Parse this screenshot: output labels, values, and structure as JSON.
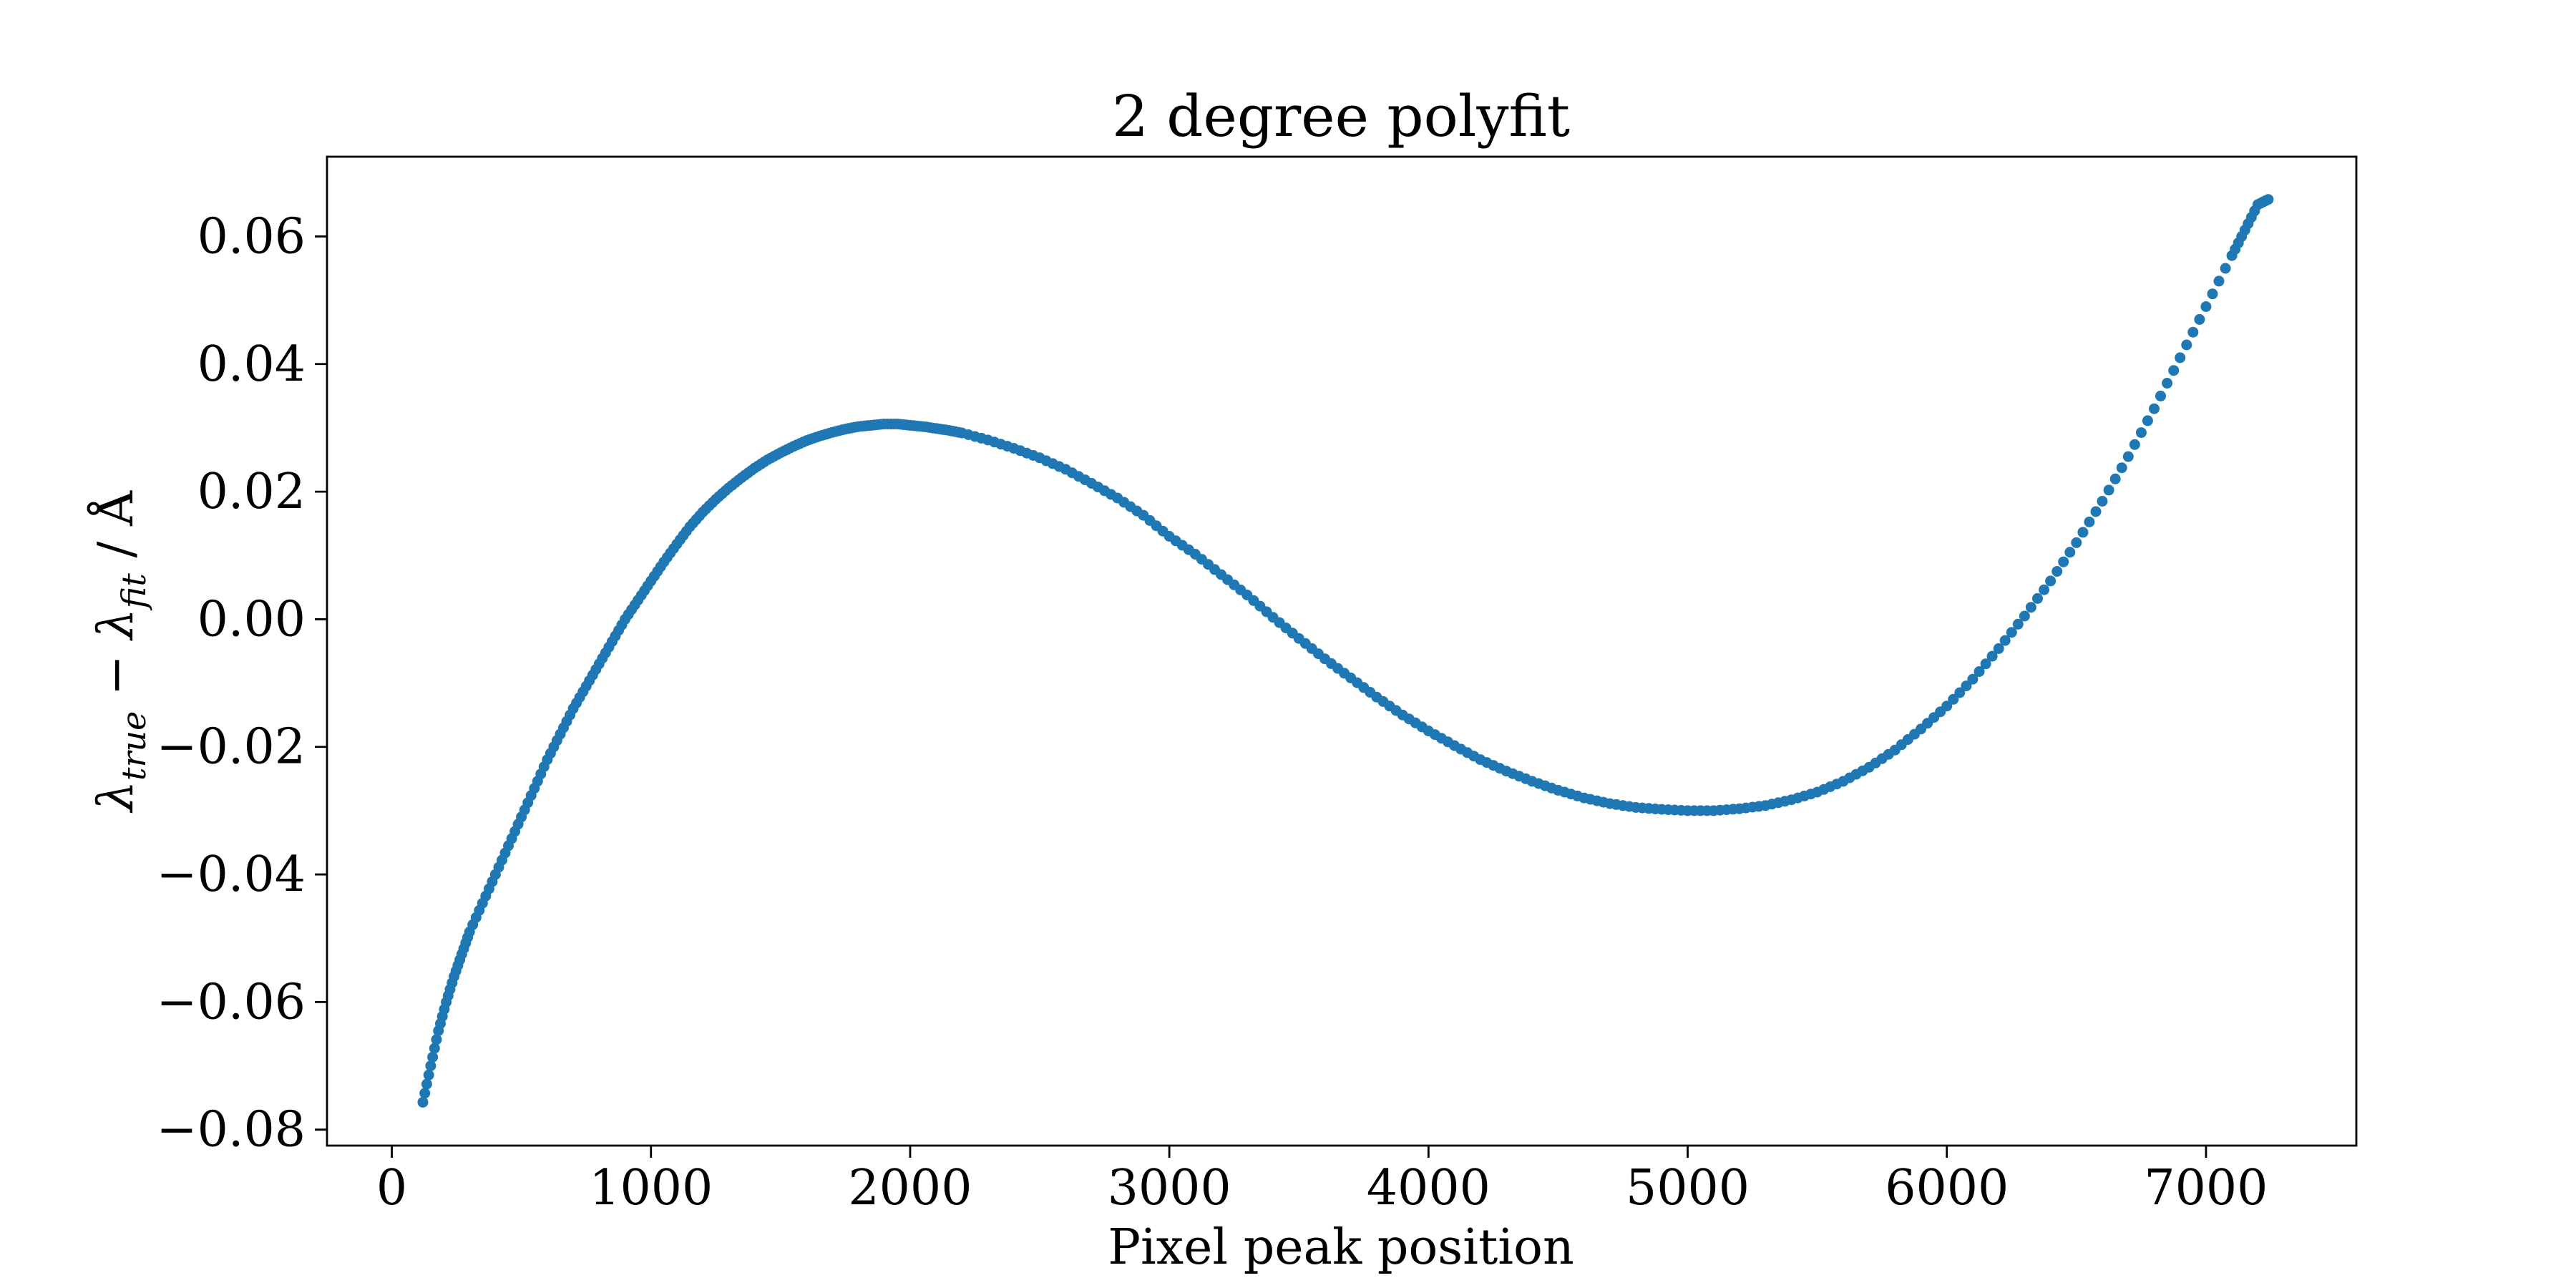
{
  "chart_data": {
    "type": "scatter",
    "title": "2 degree polyfit",
    "xlabel": "Pixel peak position",
    "ylabel": {
      "lambda": "λ",
      "sub_true": "true",
      "minus": " − ",
      "sub_fit": "fit",
      "unit": " / Å"
    },
    "xlim": [
      -250,
      7580
    ],
    "ylim": [
      -0.0825,
      0.0725
    ],
    "xticks": [
      0,
      1000,
      2000,
      3000,
      4000,
      5000,
      6000,
      7000
    ],
    "xtick_labels": [
      "0",
      "1000",
      "2000",
      "3000",
      "4000",
      "5000",
      "6000",
      "7000"
    ],
    "yticks": [
      -0.08,
      -0.06,
      -0.04,
      -0.02,
      0.0,
      0.02,
      0.04,
      0.06
    ],
    "ytick_labels": [
      "−0.08",
      "−0.06",
      "−0.04",
      "−0.02",
      "0.00",
      "0.02",
      "0.04",
      "0.06"
    ],
    "grid": false,
    "series": [
      {
        "color": "#1f77b4",
        "points": [
          [
            120,
            -0.0757
          ],
          [
            150,
            -0.07
          ],
          [
            180,
            -0.0645
          ],
          [
            210,
            -0.06
          ],
          [
            240,
            -0.056
          ],
          [
            270,
            -0.0525
          ],
          [
            300,
            -0.049
          ],
          [
            350,
            -0.0445
          ],
          [
            400,
            -0.04
          ],
          [
            450,
            -0.0355
          ],
          [
            500,
            -0.031
          ],
          [
            550,
            -0.0265
          ],
          [
            600,
            -0.022
          ],
          [
            650,
            -0.018
          ],
          [
            700,
            -0.014
          ],
          [
            750,
            -0.0105
          ],
          [
            800,
            -0.007
          ],
          [
            850,
            -0.0035
          ],
          [
            900,
            0.0
          ],
          [
            950,
            0.003
          ],
          [
            1000,
            0.006
          ],
          [
            1050,
            0.009
          ],
          [
            1100,
            0.0118
          ],
          [
            1150,
            0.0145
          ],
          [
            1200,
            0.0168
          ],
          [
            1250,
            0.0188
          ],
          [
            1300,
            0.0206
          ],
          [
            1350,
            0.0222
          ],
          [
            1400,
            0.0237
          ],
          [
            1450,
            0.025
          ],
          [
            1500,
            0.0261
          ],
          [
            1550,
            0.0271
          ],
          [
            1600,
            0.028
          ],
          [
            1650,
            0.0287
          ],
          [
            1700,
            0.0293
          ],
          [
            1750,
            0.0298
          ],
          [
            1800,
            0.0302
          ],
          [
            1850,
            0.0304
          ],
          [
            1900,
            0.0306
          ],
          [
            1950,
            0.0306
          ],
          [
            2000,
            0.0304
          ],
          [
            2050,
            0.0302
          ],
          [
            2100,
            0.0299
          ],
          [
            2150,
            0.0296
          ],
          [
            2200,
            0.0292
          ],
          [
            2300,
            0.0281
          ],
          [
            2400,
            0.0268
          ],
          [
            2500,
            0.0253
          ],
          [
            2600,
            0.0235
          ],
          [
            2700,
            0.0213
          ],
          [
            2800,
            0.019
          ],
          [
            2900,
            0.0163
          ],
          [
            3000,
            0.013
          ],
          [
            3100,
            0.0102
          ],
          [
            3200,
            0.007
          ],
          [
            3300,
            0.0038
          ],
          [
            3400,
            0.0003
          ],
          [
            3500,
            -0.003
          ],
          [
            3600,
            -0.0062
          ],
          [
            3700,
            -0.0092
          ],
          [
            3800,
            -0.0122
          ],
          [
            3900,
            -0.015
          ],
          [
            4000,
            -0.0175
          ],
          [
            4100,
            -0.0198
          ],
          [
            4200,
            -0.022
          ],
          [
            4300,
            -0.0238
          ],
          [
            4400,
            -0.0254
          ],
          [
            4500,
            -0.0268
          ],
          [
            4600,
            -0.028
          ],
          [
            4700,
            -0.0289
          ],
          [
            4800,
            -0.0295
          ],
          [
            4900,
            -0.0298
          ],
          [
            5000,
            -0.03
          ],
          [
            5100,
            -0.03
          ],
          [
            5200,
            -0.0297
          ],
          [
            5300,
            -0.0292
          ],
          [
            5400,
            -0.0283
          ],
          [
            5500,
            -0.0271
          ],
          [
            5600,
            -0.0254
          ],
          [
            5700,
            -0.0232
          ],
          [
            5800,
            -0.0205
          ],
          [
            5900,
            -0.0172
          ],
          [
            6000,
            -0.0136
          ],
          [
            6100,
            -0.0094
          ],
          [
            6200,
            -0.0046
          ],
          [
            6300,
            0.0005
          ],
          [
            6400,
            0.006
          ],
          [
            6500,
            0.012
          ],
          [
            6600,
            0.0185
          ],
          [
            6700,
            0.0255
          ],
          [
            6800,
            0.033
          ],
          [
            6900,
            0.041
          ],
          [
            7000,
            0.049
          ],
          [
            7100,
            0.057
          ],
          [
            7150,
            0.061
          ],
          [
            7200,
            0.065
          ],
          [
            7240,
            0.0658
          ]
        ]
      }
    ]
  }
}
